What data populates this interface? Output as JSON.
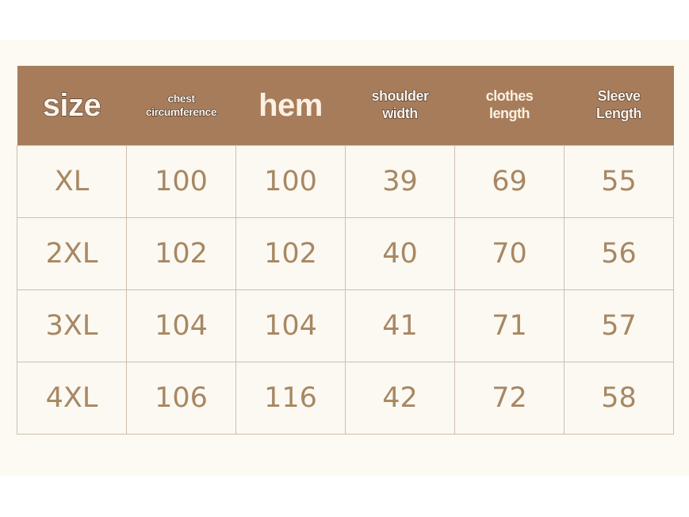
{
  "headers": [
    {
      "lines": [
        "size"
      ],
      "style": "outline",
      "size": "big"
    },
    {
      "lines": [
        "chest",
        "circumference"
      ],
      "style": "outline",
      "size": "small"
    },
    {
      "lines": [
        "hem"
      ],
      "style": "plain",
      "size": "big"
    },
    {
      "lines": [
        "shoulder",
        "width"
      ],
      "style": "outline",
      "size": "med"
    },
    {
      "lines": [
        "clothes",
        "length"
      ],
      "style": "plain",
      "size": "med"
    },
    {
      "lines": [
        "Sleeve",
        "Length"
      ],
      "style": "outline",
      "size": "med"
    }
  ],
  "rows": [
    [
      "XL",
      "100",
      "100",
      "39",
      "69",
      "55"
    ],
    [
      "2XL",
      "102",
      "102",
      "40",
      "70",
      "56"
    ],
    [
      "3XL",
      "104",
      "104",
      "41",
      "71",
      "57"
    ],
    [
      "4XL",
      "106",
      "116",
      "42",
      "72",
      "58"
    ]
  ],
  "colors": {
    "header_bg": "#a67c5b",
    "cell_text": "#a88764",
    "background": "#fcfaf2"
  }
}
